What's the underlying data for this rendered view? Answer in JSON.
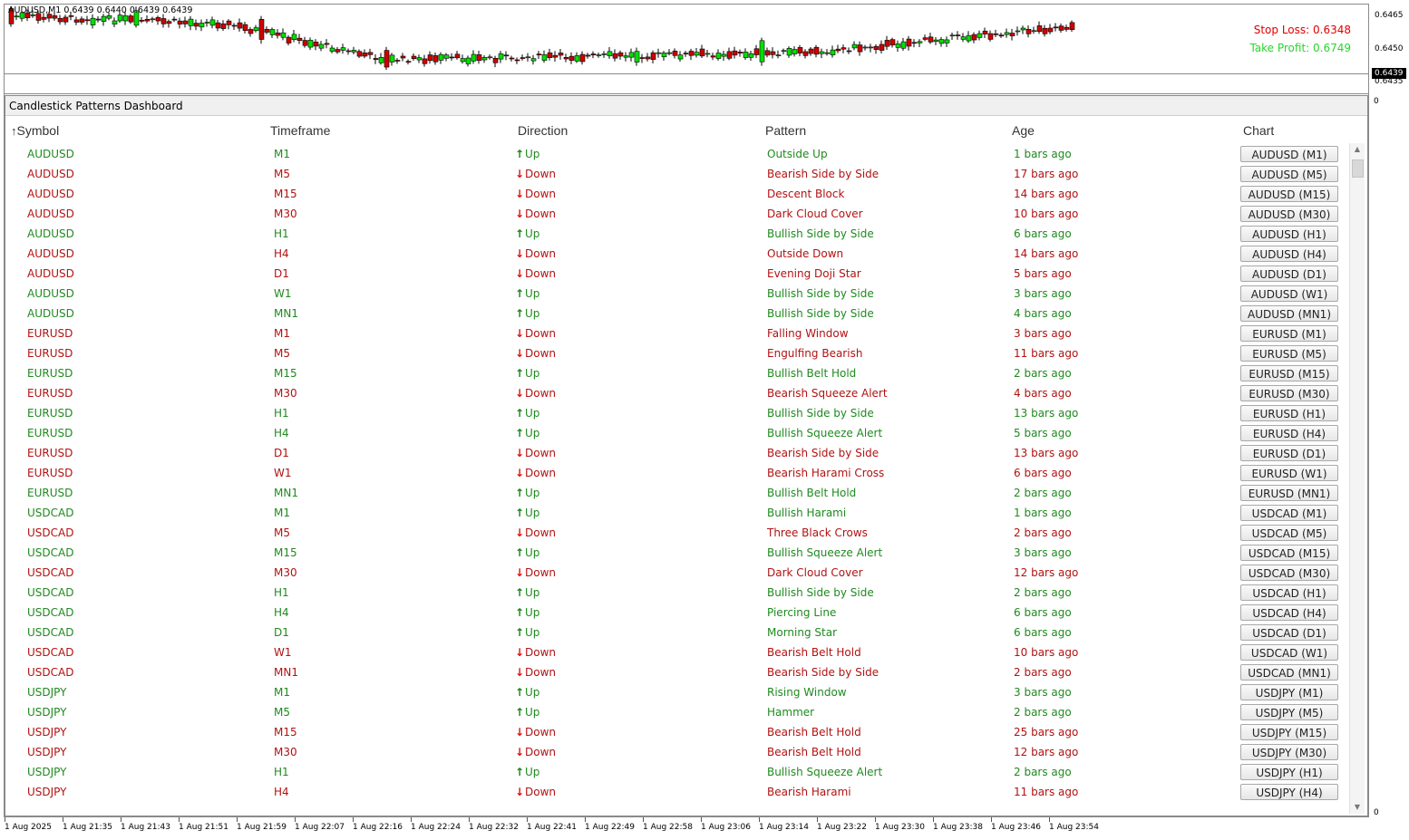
{
  "chart": {
    "title": "AUDUSD,M1  0.6439 0.6440 0.6439 0.6439",
    "stop_loss": "Stop Loss: 0.6348",
    "take_profit": "Take Profit: 0.6749",
    "price_axis": [
      "0.6465",
      "0.6450",
      "0.6435"
    ],
    "current_price": "0.6439",
    "indicator_zero": "0",
    "time_axis": [
      "1 Aug 2025",
      "1 Aug 21:35",
      "1 Aug 21:43",
      "1 Aug 21:51",
      "1 Aug 21:59",
      "1 Aug 22:07",
      "1 Aug 22:16",
      "1 Aug 22:24",
      "1 Aug 22:32",
      "1 Aug 22:41",
      "1 Aug 22:49",
      "1 Aug 22:58",
      "1 Aug 23:06",
      "1 Aug 23:14",
      "1 Aug 23:22",
      "1 Aug 23:30",
      "1 Aug 23:38",
      "1 Aug 23:46",
      "1 Aug 23:54"
    ],
    "colors": {
      "bull": "#00e000",
      "bear": "#d00000",
      "sl": "#e00000",
      "tp": "#2ad52a"
    }
  },
  "dashboard": {
    "title": "Candlestick Patterns Dashboard",
    "sort_icon": "sort-up-arrow-icon",
    "columns": [
      "Symbol",
      "Timeframe",
      "Direction",
      "Pattern",
      "Age",
      "Chart"
    ],
    "rows": [
      {
        "symbol": "AUDUSD",
        "tf": "M1",
        "dir": "Up",
        "pattern": "Outside Up",
        "age": "1 bars ago",
        "chart": "AUDUSD (M1)"
      },
      {
        "symbol": "AUDUSD",
        "tf": "M5",
        "dir": "Down",
        "pattern": "Bearish Side by Side",
        "age": "17 bars ago",
        "chart": "AUDUSD (M5)"
      },
      {
        "symbol": "AUDUSD",
        "tf": "M15",
        "dir": "Down",
        "pattern": "Descent Block",
        "age": "14 bars ago",
        "chart": "AUDUSD (M15)"
      },
      {
        "symbol": "AUDUSD",
        "tf": "M30",
        "dir": "Down",
        "pattern": "Dark Cloud Cover",
        "age": "10 bars ago",
        "chart": "AUDUSD (M30)"
      },
      {
        "symbol": "AUDUSD",
        "tf": "H1",
        "dir": "Up",
        "pattern": "Bullish Side by Side",
        "age": "6 bars ago",
        "chart": "AUDUSD (H1)"
      },
      {
        "symbol": "AUDUSD",
        "tf": "H4",
        "dir": "Down",
        "pattern": "Outside Down",
        "age": "14 bars ago",
        "chart": "AUDUSD (H4)"
      },
      {
        "symbol": "AUDUSD",
        "tf": "D1",
        "dir": "Down",
        "pattern": "Evening Doji Star",
        "age": "5 bars ago",
        "chart": "AUDUSD (D1)"
      },
      {
        "symbol": "AUDUSD",
        "tf": "W1",
        "dir": "Up",
        "pattern": "Bullish Side by Side",
        "age": "3 bars ago",
        "chart": "AUDUSD (W1)"
      },
      {
        "symbol": "AUDUSD",
        "tf": "MN1",
        "dir": "Up",
        "pattern": "Bullish Side by Side",
        "age": "4 bars ago",
        "chart": "AUDUSD (MN1)"
      },
      {
        "symbol": "EURUSD",
        "tf": "M1",
        "dir": "Down",
        "pattern": "Falling Window",
        "age": "3 bars ago",
        "chart": "EURUSD (M1)"
      },
      {
        "symbol": "EURUSD",
        "tf": "M5",
        "dir": "Down",
        "pattern": "Engulfing Bearish",
        "age": "11 bars ago",
        "chart": "EURUSD (M5)"
      },
      {
        "symbol": "EURUSD",
        "tf": "M15",
        "dir": "Up",
        "pattern": "Bullish Belt Hold",
        "age": "2 bars ago",
        "chart": "EURUSD (M15)"
      },
      {
        "symbol": "EURUSD",
        "tf": "M30",
        "dir": "Down",
        "pattern": "Bearish Squeeze Alert",
        "age": "4 bars ago",
        "chart": "EURUSD (M30)"
      },
      {
        "symbol": "EURUSD",
        "tf": "H1",
        "dir": "Up",
        "pattern": "Bullish Side by Side",
        "age": "13 bars ago",
        "chart": "EURUSD (H1)"
      },
      {
        "symbol": "EURUSD",
        "tf": "H4",
        "dir": "Up",
        "pattern": "Bullish Squeeze Alert",
        "age": "5 bars ago",
        "chart": "EURUSD (H4)"
      },
      {
        "symbol": "EURUSD",
        "tf": "D1",
        "dir": "Down",
        "pattern": "Bearish Side by Side",
        "age": "13 bars ago",
        "chart": "EURUSD (D1)"
      },
      {
        "symbol": "EURUSD",
        "tf": "W1",
        "dir": "Down",
        "pattern": "Bearish Harami Cross",
        "age": "6 bars ago",
        "chart": "EURUSD (W1)"
      },
      {
        "symbol": "EURUSD",
        "tf": "MN1",
        "dir": "Up",
        "pattern": "Bullish Belt Hold",
        "age": "2 bars ago",
        "chart": "EURUSD (MN1)"
      },
      {
        "symbol": "USDCAD",
        "tf": "M1",
        "dir": "Up",
        "pattern": "Bullish Harami",
        "age": "1 bars ago",
        "chart": "USDCAD (M1)"
      },
      {
        "symbol": "USDCAD",
        "tf": "M5",
        "dir": "Down",
        "pattern": "Three Black Crows",
        "age": "2 bars ago",
        "chart": "USDCAD (M5)"
      },
      {
        "symbol": "USDCAD",
        "tf": "M15",
        "dir": "Up",
        "pattern": "Bullish Squeeze Alert",
        "age": "3 bars ago",
        "chart": "USDCAD (M15)"
      },
      {
        "symbol": "USDCAD",
        "tf": "M30",
        "dir": "Down",
        "pattern": "Dark Cloud Cover",
        "age": "12 bars ago",
        "chart": "USDCAD (M30)"
      },
      {
        "symbol": "USDCAD",
        "tf": "H1",
        "dir": "Up",
        "pattern": "Bullish Side by Side",
        "age": "2 bars ago",
        "chart": "USDCAD (H1)"
      },
      {
        "symbol": "USDCAD",
        "tf": "H4",
        "dir": "Up",
        "pattern": "Piercing Line",
        "age": "6 bars ago",
        "chart": "USDCAD (H4)"
      },
      {
        "symbol": "USDCAD",
        "tf": "D1",
        "dir": "Up",
        "pattern": "Morning Star",
        "age": "6 bars ago",
        "chart": "USDCAD (D1)"
      },
      {
        "symbol": "USDCAD",
        "tf": "W1",
        "dir": "Down",
        "pattern": "Bearish Belt Hold",
        "age": "10 bars ago",
        "chart": "USDCAD (W1)"
      },
      {
        "symbol": "USDCAD",
        "tf": "MN1",
        "dir": "Down",
        "pattern": "Bearish Side by Side",
        "age": "2 bars ago",
        "chart": "USDCAD (MN1)"
      },
      {
        "symbol": "USDJPY",
        "tf": "M1",
        "dir": "Up",
        "pattern": "Rising Window",
        "age": "3 bars ago",
        "chart": "USDJPY (M1)"
      },
      {
        "symbol": "USDJPY",
        "tf": "M5",
        "dir": "Up",
        "pattern": "Hammer",
        "age": "2 bars ago",
        "chart": "USDJPY (M5)"
      },
      {
        "symbol": "USDJPY",
        "tf": "M15",
        "dir": "Down",
        "pattern": "Bearish Belt Hold",
        "age": "25 bars ago",
        "chart": "USDJPY (M15)"
      },
      {
        "symbol": "USDJPY",
        "tf": "M30",
        "dir": "Down",
        "pattern": "Bearish Belt Hold",
        "age": "12 bars ago",
        "chart": "USDJPY (M30)"
      },
      {
        "symbol": "USDJPY",
        "tf": "H1",
        "dir": "Up",
        "pattern": "Bullish Squeeze Alert",
        "age": "2 bars ago",
        "chart": "USDJPY (H1)"
      },
      {
        "symbol": "USDJPY",
        "tf": "H4",
        "dir": "Down",
        "pattern": "Bearish Harami",
        "age": "11 bars ago",
        "chart": "USDJPY (H4)"
      }
    ]
  }
}
